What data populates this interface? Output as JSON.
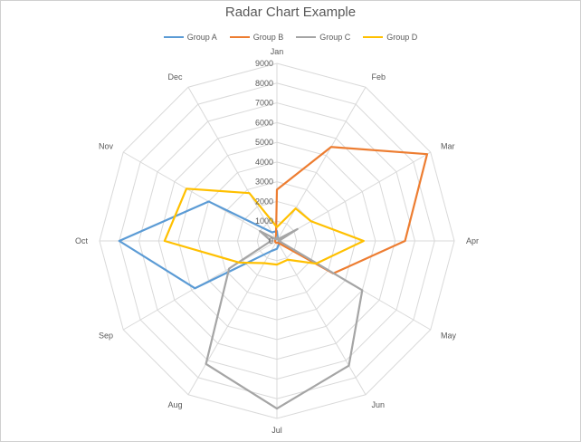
{
  "chart_data": {
    "type": "radar",
    "title": "Radar Chart Example",
    "categories": [
      "Jan",
      "Feb",
      "Mar",
      "Apr",
      "May",
      "Jun",
      "Jul",
      "Aug",
      "Sep",
      "Oct",
      "Nov",
      "Dec"
    ],
    "rlim": [
      0,
      9000
    ],
    "ticks": [
      0,
      1000,
      2000,
      3000,
      4000,
      5000,
      6000,
      7000,
      8000,
      9000
    ],
    "grid": true,
    "legend": "top",
    "series": [
      {
        "name": "Group A",
        "color": "#5B9BD5",
        "values": [
          500,
          100,
          100,
          100,
          100,
          200,
          400,
          600,
          4800,
          8000,
          4000,
          500
        ]
      },
      {
        "name": "Group B",
        "color": "#ED7D31",
        "values": [
          2600,
          5500,
          8800,
          6500,
          3300,
          100,
          100,
          100,
          100,
          100,
          100,
          100
        ]
      },
      {
        "name": "Group C",
        "color": "#A5A5A5",
        "values": [
          200,
          100,
          1200,
          100,
          5000,
          7300,
          8500,
          7200,
          2800,
          300,
          1000,
          100
        ]
      },
      {
        "name": "Group D",
        "color": "#FFC000",
        "values": [
          700,
          1900,
          2000,
          4400,
          2300,
          1100,
          1200,
          1300,
          2200,
          5700,
          5300,
          2800
        ]
      }
    ]
  }
}
